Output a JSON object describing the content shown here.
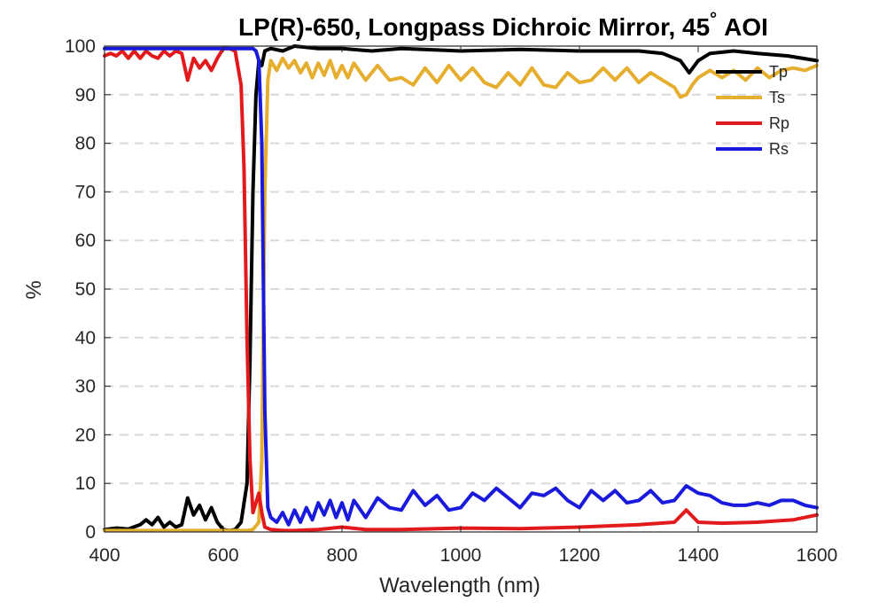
{
  "chart_data": {
    "type": "line",
    "title": "LP(R)-650, Longpass Dichroic Mirror, 45",
    "title_degree": "°",
    "title_suffix": "AOI",
    "xlabel": "Wavelength (nm)",
    "ylabel": "%",
    "xlim": [
      400,
      1600
    ],
    "ylim": [
      0,
      100
    ],
    "xticks": [
      "400",
      "600",
      "800",
      "1000",
      "1200",
      "1400",
      "1600"
    ],
    "yticks": [
      "0",
      "10",
      "20",
      "30",
      "40",
      "50",
      "60",
      "70",
      "80",
      "90",
      "100"
    ],
    "grid": "horizontal dashed",
    "legend_position": "top-right",
    "series": [
      {
        "name": "Tp",
        "color": "#000000",
        "x": [
          400,
          420,
          440,
          460,
          470,
          480,
          490,
          500,
          510,
          520,
          530,
          540,
          550,
          560,
          570,
          580,
          590,
          600,
          610,
          620,
          630,
          640,
          645,
          650,
          655,
          660,
          665,
          670,
          680,
          700,
          720,
          760,
          800,
          850,
          900,
          1000,
          1100,
          1200,
          1300,
          1340,
          1370,
          1385,
          1400,
          1420,
          1460,
          1500,
          1550,
          1600
        ],
        "y": [
          0.5,
          0.8,
          0.6,
          1.5,
          2.5,
          1.5,
          3.0,
          1.0,
          2.0,
          1.0,
          1.5,
          7.0,
          3.5,
          5.5,
          2.5,
          5.0,
          2.0,
          0.5,
          0.3,
          0.5,
          2.0,
          10,
          35,
          70,
          90,
          97,
          96,
          99,
          99.5,
          99.0,
          100,
          99.5,
          99.5,
          99.0,
          99.5,
          99.0,
          99.3,
          99.0,
          99.0,
          98.5,
          97.0,
          94.5,
          97.0,
          98.5,
          99.0,
          98.5,
          98.0,
          97.0
        ]
      },
      {
        "name": "Ts",
        "color": "#E6AE2E",
        "x": [
          400,
          500,
          600,
          640,
          650,
          660,
          665,
          670,
          675,
          680,
          690,
          700,
          710,
          720,
          730,
          740,
          750,
          760,
          770,
          780,
          790,
          800,
          810,
          820,
          840,
          860,
          880,
          900,
          920,
          940,
          960,
          980,
          1000,
          1020,
          1040,
          1060,
          1080,
          1100,
          1120,
          1140,
          1160,
          1180,
          1200,
          1220,
          1240,
          1260,
          1280,
          1300,
          1320,
          1340,
          1360,
          1370,
          1380,
          1390,
          1400,
          1420,
          1440,
          1460,
          1480,
          1500,
          1520,
          1540,
          1560,
          1580,
          1600
        ],
        "y": [
          0.3,
          0.3,
          0.3,
          0.3,
          0.5,
          2,
          15,
          70,
          93,
          97,
          95,
          97.5,
          95.5,
          97,
          94.5,
          96.5,
          93.5,
          96.5,
          94,
          97,
          93.5,
          96,
          93.5,
          96.5,
          93,
          96,
          93,
          93.5,
          92,
          95.5,
          92.5,
          96,
          93,
          95.5,
          92.5,
          91.5,
          94.5,
          92,
          95.5,
          92,
          91.5,
          94.5,
          92.5,
          93,
          95.5,
          93,
          95.5,
          92.5,
          94.5,
          93,
          91.5,
          89.5,
          90,
          92,
          93.5,
          95,
          93.5,
          95,
          93,
          95.5,
          93.5,
          95,
          95.5,
          95,
          96
        ]
      },
      {
        "name": "Rp",
        "color": "#E31A1C",
        "x": [
          400,
          410,
          420,
          430,
          440,
          450,
          460,
          470,
          480,
          490,
          500,
          510,
          520,
          530,
          540,
          550,
          560,
          570,
          580,
          590,
          600,
          610,
          620,
          630,
          635,
          640,
          645,
          650,
          655,
          660,
          665,
          670,
          680,
          700,
          720,
          760,
          800,
          840,
          900,
          1000,
          1100,
          1200,
          1300,
          1360,
          1380,
          1400,
          1440,
          1500,
          1560,
          1600
        ],
        "y": [
          98,
          98.5,
          98,
          99,
          97.5,
          99,
          97.5,
          99,
          98,
          97.5,
          99,
          98,
          99,
          98.5,
          93,
          97.5,
          95.5,
          97,
          95,
          97.5,
          99.5,
          99.5,
          99,
          92,
          75,
          40,
          15,
          4,
          6,
          8,
          4,
          1,
          0.5,
          0.3,
          0.3,
          0.5,
          1.0,
          0.5,
          0.5,
          0.8,
          0.7,
          1.0,
          1.5,
          2.0,
          4.5,
          2.0,
          1.8,
          2.0,
          2.5,
          3.5
        ]
      },
      {
        "name": "Rs",
        "color": "#1A1ADC",
        "x": [
          400,
          450,
          500,
          550,
          600,
          640,
          650,
          655,
          660,
          665,
          670,
          675,
          680,
          690,
          700,
          710,
          720,
          730,
          740,
          750,
          760,
          770,
          780,
          790,
          800,
          810,
          820,
          840,
          860,
          880,
          900,
          920,
          940,
          960,
          980,
          1000,
          1020,
          1040,
          1060,
          1080,
          1100,
          1120,
          1140,
          1160,
          1180,
          1200,
          1220,
          1240,
          1260,
          1280,
          1300,
          1320,
          1340,
          1360,
          1380,
          1400,
          1420,
          1440,
          1460,
          1480,
          1500,
          1520,
          1540,
          1560,
          1580,
          1600
        ],
        "y": [
          99.5,
          99.5,
          99.5,
          99.5,
          99.5,
          99.5,
          99.5,
          99,
          97,
          80,
          25,
          5,
          3,
          2,
          4,
          1.5,
          4.5,
          2,
          5,
          2.5,
          6,
          3.5,
          6.5,
          3,
          6,
          2.5,
          6.5,
          3,
          7,
          5,
          4.5,
          8.5,
          5.5,
          7.5,
          4.5,
          5,
          8,
          6.5,
          9,
          7,
          5,
          8,
          7.5,
          9,
          6.5,
          5,
          8.5,
          6.5,
          8.5,
          6,
          6.5,
          8.5,
          6,
          6.5,
          9.5,
          8,
          7.5,
          6,
          5.5,
          5.5,
          6,
          5.5,
          6.5,
          6.5,
          5.5,
          5
        ]
      }
    ]
  }
}
